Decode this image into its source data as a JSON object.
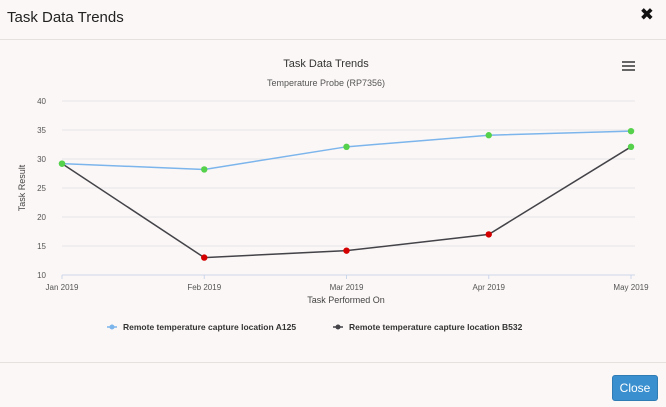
{
  "modal": {
    "title": "Task Data Trends",
    "close_icon": "close-x-icon",
    "close_button_label": "Close"
  },
  "chart_data": {
    "type": "line",
    "title": "Task Data Trends",
    "subtitle": "Temperature Probe (RP7356)",
    "xlabel": "Task Performed On",
    "ylabel": "Task Result",
    "categories": [
      "Jan 2019",
      "Feb 2019",
      "Mar 2019",
      "Apr 2019",
      "May 2019"
    ],
    "ylim": [
      10,
      40
    ],
    "yticks": [
      10,
      15,
      20,
      25,
      30,
      35,
      40
    ],
    "grid": true,
    "legend_position": "bottom-center",
    "menu_icon": "hamburger-menu-icon",
    "series": [
      {
        "name": "Remote temperature capture location A125",
        "color": "#7cb5ec",
        "values": [
          29.2,
          28.2,
          32.1,
          34.1,
          34.8
        ],
        "point_colors": [
          "#55d14b",
          "#55d14b",
          "#55d14b",
          "#55d14b",
          "#55d14b"
        ]
      },
      {
        "name": "Remote temperature capture location B532",
        "color": "#434348",
        "values": [
          29.2,
          13.0,
          14.2,
          17.0,
          32.1
        ],
        "point_colors": [
          "#55d14b",
          "#d40000",
          "#d40000",
          "#d40000",
          "#55d14b"
        ]
      }
    ]
  }
}
